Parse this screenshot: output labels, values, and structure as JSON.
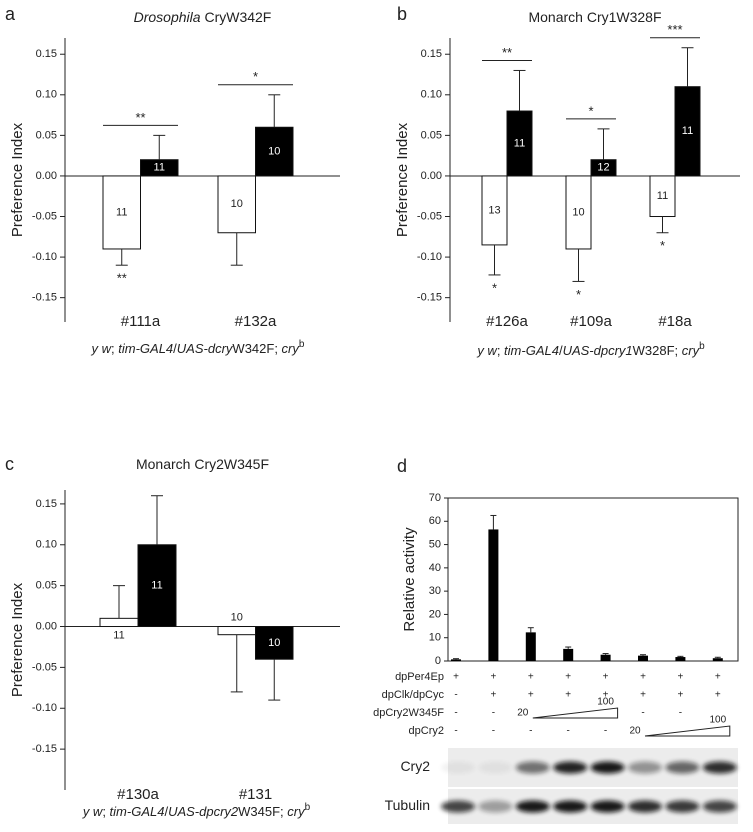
{
  "chart_data": [
    {
      "type": "errorbar-bar",
      "panel": "a",
      "title": [
        "Drosophila",
        " CryW342F"
      ],
      "ylabel": "Preference Index",
      "categories": [
        "#111a",
        "#132a"
      ],
      "xlabel": [
        "y w",
        "; ",
        "tim-GAL4",
        "/",
        "UAS-dcry",
        "W342F; ",
        "cry",
        "b"
      ],
      "ylim": [
        -0.18,
        0.17
      ],
      "yticks": [
        -0.15,
        {
          "value": -0.1,
          "label": "-0.10"
        },
        -0.05,
        {
          "value": 0,
          "label": "0.00"
        },
        0.05,
        {
          "value": 0.1,
          "label": "0.10"
        },
        0.15
      ],
      "series": [
        {
          "color": "#ffffff",
          "values": [
            -0.09,
            -0.07
          ],
          "errors": [
            0.02,
            0.04
          ],
          "n": [
            11,
            10
          ],
          "stars": [
            "**",
            null
          ]
        },
        {
          "color": "#000000",
          "values": [
            0.02,
            0.06
          ],
          "errors": [
            0.03,
            0.04
          ],
          "n": [
            11,
            10
          ],
          "stars": [
            null,
            null
          ]
        }
      ],
      "significance": [
        "**",
        "*"
      ]
    },
    {
      "type": "errorbar-bar",
      "panel": "b",
      "title": [
        "Monarch Cry1W328F"
      ],
      "ylabel": "Preference Index",
      "categories": [
        "#126a",
        "#109a",
        "#18a"
      ],
      "xlabel": [
        "y w",
        "; ",
        "tim-GAL4",
        "/",
        "UAS-dpcry1",
        "W328F; ",
        "cry",
        "b"
      ],
      "ylim": [
        -0.18,
        0.17
      ],
      "yticks": [
        -0.15,
        {
          "value": -0.1,
          "label": "-0.10"
        },
        -0.05,
        {
          "value": 0,
          "label": "0.00"
        },
        0.05,
        {
          "value": 0.1,
          "label": "0.10"
        },
        0.15
      ],
      "series": [
        {
          "color": "#ffffff",
          "values": [
            -0.085,
            -0.09,
            -0.05
          ],
          "errors": [
            0.037,
            0.04,
            0.02
          ],
          "n": [
            13,
            10,
            11
          ],
          "stars": [
            "*",
            "*",
            "*"
          ]
        },
        {
          "color": "#000000",
          "values": [
            0.08,
            0.02,
            0.11
          ],
          "errors": [
            0.05,
            0.038,
            0.048
          ],
          "n": [
            11,
            12,
            11
          ],
          "stars": [
            null,
            null,
            null
          ]
        }
      ],
      "significance": [
        "**",
        "*",
        "***"
      ]
    },
    {
      "type": "errorbar-bar",
      "panel": "c",
      "title": [
        "Monarch Cry2W345F"
      ],
      "ylabel": "Preference Index",
      "categories": [
        "#130a",
        "#131"
      ],
      "xlabel": [
        "y w",
        "; ",
        "tim-GAL4",
        "/",
        "UAS-dpcry2",
        "W345F; ",
        "cry",
        "b"
      ],
      "ylim": [
        -0.2,
        0.167
      ],
      "yticks": [
        -0.15,
        {
          "value": -0.1,
          "label": "-0.10"
        },
        -0.05,
        {
          "value": 0,
          "label": "0.00"
        },
        0.05,
        {
          "value": 0.1,
          "label": "0.10"
        },
        0.15
      ],
      "series": [
        {
          "color": "#ffffff",
          "values": [
            0.01,
            -0.01
          ],
          "errors": [
            0.04,
            0.07
          ],
          "n": [
            11,
            10
          ],
          "stars": [
            null,
            null
          ]
        },
        {
          "color": "#000000",
          "values": [
            0.1,
            -0.04
          ],
          "errors": [
            0.06,
            0.05
          ],
          "n": [
            11,
            10
          ],
          "stars": [
            null,
            null
          ]
        }
      ],
      "significance": [
        null,
        null
      ]
    },
    {
      "type": "bar",
      "panel": "d",
      "ylabel": "Relative activity",
      "color": "#000000",
      "values": [
        0.7,
        56.5,
        12.3,
        5.2,
        2.7,
        2.3,
        1.7,
        1.2
      ],
      "errors": [
        0.3,
        6,
        2,
        0.8,
        0.5,
        0.4,
        0.3,
        0.4
      ],
      "ylim": [
        0,
        70
      ],
      "yticks": [
        0,
        10,
        20,
        30,
        40,
        50,
        60,
        70
      ],
      "conditions": [
        {
          "label": "dpPer4Ep",
          "cells": [
            "+",
            "+",
            "+",
            "+",
            "+",
            "+",
            "+",
            "+"
          ]
        },
        {
          "label": "dpClk/dpCyc",
          "cells": [
            "-",
            "+",
            "+",
            "+",
            "+",
            "+",
            "+",
            "+"
          ]
        },
        {
          "label": "dpCry2W345F",
          "cells": [
            "-",
            "-",
            "20",
            null,
            "100",
            "-",
            "-",
            null
          ]
        },
        {
          "label": "dpCry2",
          "cells": [
            "-",
            "-",
            "-",
            "-",
            "-",
            "20",
            null,
            "100"
          ]
        }
      ],
      "blot_labels": [
        "Cry2",
        "Tubulin"
      ]
    }
  ]
}
